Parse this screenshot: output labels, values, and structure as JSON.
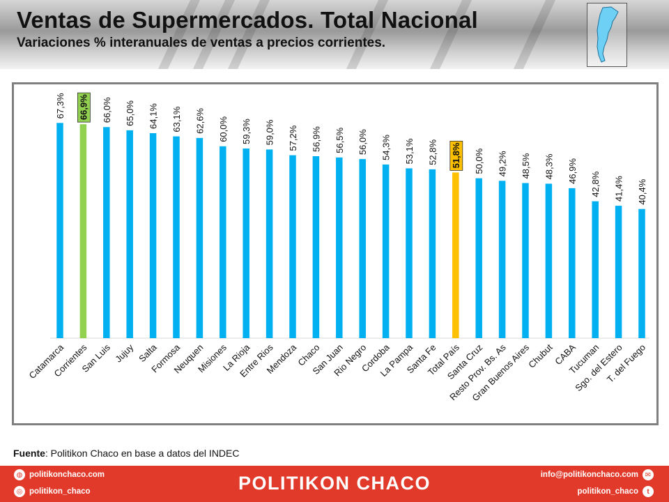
{
  "header": {
    "title": "Ventas de Supermercados. Total Nacional",
    "subtitle": "Variaciones % interanuales de ventas a precios corrientes."
  },
  "source": {
    "label": "Fuente",
    "text": ": Politikon Chaco en base a datos del INDEC"
  },
  "footer": {
    "website": "politikonchaco.com",
    "instagram": "politikon_chaco",
    "brand": "POLITIKON CHACO",
    "email": "info@politikonchaco.com",
    "twitter": "politikon_chaco",
    "icons": [
      "globe-icon",
      "instagram-icon",
      "mail-icon",
      "twitter-icon"
    ]
  },
  "colors": {
    "bar_default": "#00b0f0",
    "bar_corrientes": "#92d050",
    "bar_total": "#ffc000",
    "footer_bg": "#e23a2a"
  },
  "chart_data": {
    "type": "bar",
    "categories": [
      "Catamarca",
      "Corrientes",
      "San Luis",
      "Jujuy",
      "Salta",
      "Formosa",
      "Neuquen",
      "Misiones",
      "La Rioja",
      "Entre Rios",
      "Mendoza",
      "Chaco",
      "San Juan",
      "Rio Negro",
      "Cordoba",
      "La Pampa",
      "Santa Fe",
      "Total País",
      "Santa Cruz",
      "Resto Prov. Bs. As",
      "Gran Buenos Aires",
      "Chubut",
      "CABA",
      "Tucuman",
      "Sgo. del Estero",
      "T. del Fuego"
    ],
    "values": [
      67.3,
      66.9,
      66.0,
      65.0,
      64.1,
      63.1,
      62.6,
      60.0,
      59.3,
      59.0,
      57.2,
      56.9,
      56.5,
      56.0,
      54.3,
      53.1,
      52.8,
      51.8,
      50.0,
      49.2,
      48.5,
      48.3,
      46.9,
      42.8,
      41.4,
      40.4
    ],
    "labels": [
      "67,3%",
      "66,9%",
      "66,0%",
      "65,0%",
      "64,1%",
      "63,1%",
      "62,6%",
      "60,0%",
      "59,3%",
      "59,0%",
      "57,2%",
      "56,9%",
      "56,5%",
      "56,0%",
      "54,3%",
      "53,1%",
      "52,8%",
      "51,8%",
      "50,0%",
      "49,2%",
      "48,5%",
      "48,3%",
      "46,9%",
      "42,8%",
      "41,4%",
      "40,4%"
    ],
    "highlight": {
      "Corrientes": "#92d050",
      "Total País": "#ffc000"
    },
    "ylim": [
      0,
      75
    ],
    "grid": false,
    "legend": "none"
  }
}
